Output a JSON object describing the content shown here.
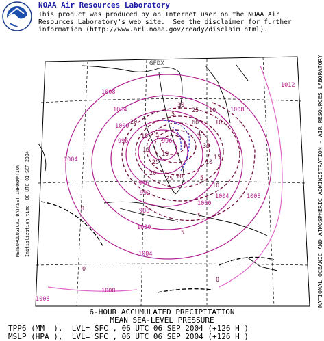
{
  "header": {
    "logo": "noaa-logo",
    "title": "NOAA Air Resources Laboratory",
    "disclaimer_lines": [
      "This product was produced by an Internet user on the NOAA Air",
      "Resources Laboratory's web site.  See the disclaimer for further",
      "information (http://www.arl.noaa.gov/ready/disclaim.html)."
    ]
  },
  "side": {
    "right_credit": "NATIONAL OCEANIC AND ATMOSPHERIC ADMINISTRATION - AIR RESOURCES LABORATORY",
    "left_line1": "METEOROLOGICAL DATASET INFORMATION",
    "left_line2": "Initialization time: 00 UTC 01 SEP 2004"
  },
  "map": {
    "model_label": "GFDX",
    "colors": {
      "pressure": "#b0208f",
      "pressure_light": "#e066c8",
      "precip": "#70103f",
      "precip_blue": "#2a2ad0",
      "coast": "#000000"
    },
    "pressure_labels": [
      "1008",
      "1004",
      "1000",
      "996",
      "996",
      "992",
      "988",
      "1000",
      "1004",
      "1008",
      "1008",
      "1004",
      "1000",
      "996",
      "1008",
      "1012",
      "1004",
      "1008"
    ],
    "precip_labels": [
      "30",
      "25",
      "20",
      "15",
      "10",
      "5",
      "5",
      "10",
      "5",
      "15",
      "10",
      "5",
      "0",
      "0",
      "5",
      "10",
      "15",
      "20",
      "25",
      "35",
      "45",
      "60",
      "0",
      "10",
      "5",
      "10",
      "25"
    ]
  },
  "titles": {
    "line1": "6-HOUR ACCUMULATED PRECIPITATION",
    "line2": "MEAN SEA-LEVEL PRESSURE",
    "line3": "TPP6 (MM  ),  LVL= SFC , 06 UTC 06 SEP 2004 (+126 H )",
    "line4": "MSLP (HPA ),  LVL= SFC , 06 UTC 06 SEP 2004 (+126 H )"
  }
}
